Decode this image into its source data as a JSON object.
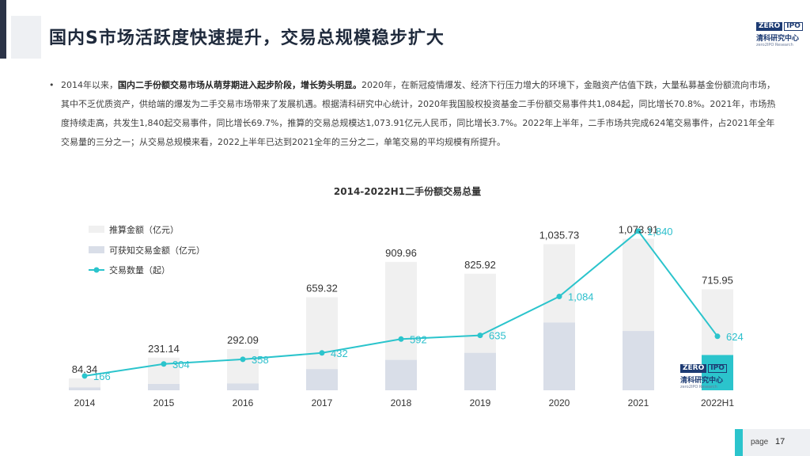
{
  "header": {
    "title": "国内S市场活跃度快速提升，交易总规模稳步扩大"
  },
  "logo": {
    "zero": "ZERO",
    "ipo": "IPO",
    "cn": "清科研究中心",
    "en": "zero2IPO Research"
  },
  "bullet": {
    "dot": "•",
    "part1": "2014年以来，",
    "bold": "国内二手份额交易市场从萌芽期进入起步阶段，增长势头明显。",
    "part2": "2020年，在新冠疫情爆发、经济下行压力增大的环境下，金融资产估值下跌，大量私募基金份额流向市场，其中不乏优质资产，供给端的爆发为二手交易市场带来了发展机遇。根据清科研究中心统计，2020年我国股权投资基金二手份额交易事件共1,084起，同比增长70.8%。2021年，市场热度持续走高，共发生1,840起交易事件，同比增长69.7%，推算的交易总规模达1,073.91亿元人民币，同比增长3.7%。2022年上半年，二手市场共完成624笔交易事件，占2021年全年交易量的三分之一；从交易总规模来看，2022上半年已达到2021全年的三分之二，单笔交易的平均规模有所提升。"
  },
  "chart_data": {
    "type": "bar",
    "title": "2014-2022H1二手份额交易总量",
    "categories": [
      "2014",
      "2015",
      "2016",
      "2017",
      "2018",
      "2019",
      "2020",
      "2021",
      "2022H1"
    ],
    "series": [
      {
        "name": "推算金额（亿元）",
        "type": "bar",
        "color": "#f0f0f0",
        "values": [
          84.34,
          231.14,
          292.09,
          659.32,
          909.96,
          825.92,
          1035.73,
          1073.91,
          715.95
        ],
        "labels": [
          "84.34",
          "231.14",
          "292.09",
          "659.32",
          "909.96",
          "825.92",
          "1,035.73",
          "1,073.91",
          "715.95"
        ]
      },
      {
        "name": "可获知交易金额（亿元）",
        "type": "bar",
        "color": "#d9dee8",
        "values": [
          20,
          45,
          48,
          150,
          215,
          265,
          480,
          420,
          250
        ]
      },
      {
        "name": "交易数量（起）",
        "type": "line",
        "color": "#2bc4cc",
        "values": [
          166,
          304,
          358,
          432,
          592,
          635,
          1084,
          1840,
          624
        ],
        "labels": [
          "166",
          "304",
          "358",
          "432",
          "592",
          "635",
          "1,084",
          "1,840",
          "624"
        ]
      }
    ],
    "highlight_color": "#2bc4cc",
    "ylim_amount": [
      0,
      1150
    ],
    "ylim_count": [
      0,
      1940
    ],
    "legend_position": "top-left",
    "grid": false
  },
  "footer": {
    "page_label": "page",
    "page_number": "17"
  }
}
